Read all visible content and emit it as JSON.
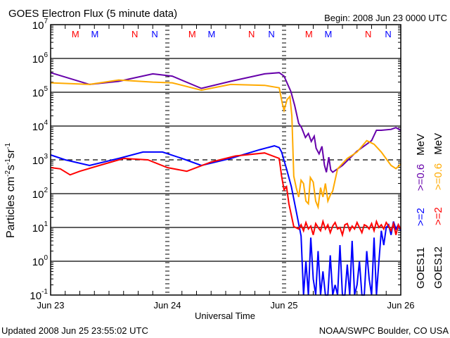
{
  "chart_data": {
    "type": "line",
    "title": "GOES Electron Flux (5 minute data)",
    "begin_label": "Begin: 2008 Jun 23 0000 UTC",
    "xlabel": "Universal Time",
    "ylabel": "Particles cm-2s-1sr-1",
    "ylabel_parts": [
      "Particles cm",
      "-2",
      "s",
      "-1",
      "sr",
      "-1"
    ],
    "yscale": "log",
    "ylim": [
      0.1,
      10000000
    ],
    "y_tick_exponents": [
      "7",
      "6",
      "5",
      "4",
      "3",
      "2",
      "1",
      "0",
      "-1"
    ],
    "y_tick_base": "10",
    "xlim_hours": [
      0,
      72
    ],
    "x_ticks": [
      {
        "hour": 0,
        "label": "Jun 23"
      },
      {
        "hour": 24,
        "label": "Jun 24"
      },
      {
        "hour": 48,
        "label": "Jun 25"
      },
      {
        "hour": 72,
        "label": "Jun 26"
      }
    ],
    "threshold": {
      "value": 1000,
      "style": "dashed"
    },
    "grid_values": [
      1000000,
      100000,
      10000,
      100,
      10,
      1
    ],
    "markers": [
      {
        "label": "M",
        "hour": 5.1,
        "color": "#ff0000"
      },
      {
        "label": "M",
        "hour": 9.1,
        "color": "#0000ff"
      },
      {
        "label": "N",
        "hour": 17.3,
        "color": "#ff0000"
      },
      {
        "label": "N",
        "hour": 21.4,
        "color": "#0000ff"
      },
      {
        "label": "M",
        "hour": 29.1,
        "color": "#ff0000"
      },
      {
        "label": "M",
        "hour": 33.1,
        "color": "#0000ff"
      },
      {
        "label": "N",
        "hour": 41.3,
        "color": "#ff0000"
      },
      {
        "label": "N",
        "hour": 45.4,
        "color": "#0000ff"
      },
      {
        "label": "M",
        "hour": 53.1,
        "color": "#ff0000"
      },
      {
        "label": "M",
        "hour": 57.1,
        "color": "#0000ff"
      },
      {
        "label": "N",
        "hour": 65.3,
        "color": "#ff0000"
      },
      {
        "label": "N",
        "hour": 69.4,
        "color": "#0000ff"
      }
    ],
    "legend": {
      "placement": "right, rotated",
      "columns": [
        {
          "satellite": "GOES11",
          "low": ">=2",
          "low_color": "#0000ff",
          "high": ">=0.6",
          "high_color": "#6600aa",
          "unit": "MeV"
        },
        {
          "satellite": "GOES12",
          "low": ">=2",
          "low_color": "#ff0000",
          "high": ">=0.6",
          "high_color": "#ffaa00",
          "unit": "MeV"
        }
      ]
    },
    "series": [
      {
        "name": "GOES11 >=0.6 MeV",
        "color": "#6600aa",
        "points": [
          [
            0,
            380000
          ],
          [
            8,
            170000
          ],
          [
            14,
            210000
          ],
          [
            21,
            350000
          ],
          [
            25,
            300000
          ],
          [
            31,
            130000
          ],
          [
            37,
            210000
          ],
          [
            44,
            350000
          ],
          [
            47,
            380000
          ],
          [
            48,
            300000
          ],
          [
            49.4,
            105000
          ],
          [
            50.2,
            40000
          ],
          [
            51,
            12000
          ],
          [
            51.6,
            9000
          ],
          [
            52.4,
            4600
          ],
          [
            53,
            6000
          ],
          [
            53.6,
            3500
          ],
          [
            54.2,
            5000
          ],
          [
            54.6,
            2200
          ],
          [
            55.2,
            1500
          ],
          [
            55.8,
            2500
          ],
          [
            56.3,
            700
          ],
          [
            56.7,
            430
          ],
          [
            57.2,
            1200
          ],
          [
            57.6,
            500
          ],
          [
            58,
            430
          ],
          [
            60,
            680
          ],
          [
            63,
            1800
          ],
          [
            66,
            3700
          ],
          [
            67,
            7500
          ],
          [
            68,
            7500
          ],
          [
            70,
            8000
          ],
          [
            71,
            9000
          ],
          [
            72,
            7500
          ]
        ]
      },
      {
        "name": "GOES12 >=0.6 MeV",
        "color": "#ffaa00",
        "points": [
          [
            0,
            190000
          ],
          [
            8,
            170000
          ],
          [
            14,
            230000
          ],
          [
            21,
            200000
          ],
          [
            25,
            190000
          ],
          [
            31,
            115000
          ],
          [
            37,
            170000
          ],
          [
            44,
            160000
          ],
          [
            47,
            135000
          ],
          [
            47.6,
            50000
          ],
          [
            48,
            29000
          ],
          [
            48.6,
            60000
          ],
          [
            49.2,
            75000
          ],
          [
            49.6,
            20000
          ],
          [
            50,
            330
          ],
          [
            50.5,
            150
          ],
          [
            51,
            80
          ],
          [
            51.5,
            250
          ],
          [
            52,
            200
          ],
          [
            52.5,
            60
          ],
          [
            53,
            50
          ],
          [
            53.4,
            300
          ],
          [
            54,
            220
          ],
          [
            54.5,
            60
          ],
          [
            55,
            40
          ],
          [
            55.5,
            150
          ],
          [
            56,
            80
          ],
          [
            56.5,
            200
          ],
          [
            57,
            60
          ],
          [
            57.5,
            90
          ],
          [
            58,
            120
          ],
          [
            59,
            540
          ],
          [
            61,
            1100
          ],
          [
            63,
            1700
          ],
          [
            65,
            3700
          ],
          [
            66.5,
            2900
          ],
          [
            68,
            1700
          ],
          [
            70,
            680
          ],
          [
            71,
            550
          ],
          [
            72,
            750
          ]
        ]
      },
      {
        "name": "GOES11 >=2 MeV",
        "color": "#0000ff",
        "points": [
          [
            0,
            1400
          ],
          [
            3,
            1000
          ],
          [
            8,
            680
          ],
          [
            14,
            1100
          ],
          [
            19,
            1700
          ],
          [
            23,
            1700
          ],
          [
            27,
            1100
          ],
          [
            31,
            680
          ],
          [
            37,
            1100
          ],
          [
            43,
            2000
          ],
          [
            46,
            2600
          ],
          [
            47,
            2300
          ],
          [
            47.5,
            1700
          ],
          [
            48.5,
            540
          ],
          [
            49.5,
            160
          ],
          [
            50.5,
            30
          ],
          [
            51.5,
            5.6
          ]
        ],
        "noisy_tail": {
          "start_hour": 52,
          "step_hours": 0.5,
          "values": [
            0.1,
            1,
            0.1,
            5,
            0.3,
            0.1,
            2,
            0.1,
            0.5,
            0.1,
            0.1,
            1.5,
            0.1,
            0.2,
            0.1,
            3,
            0.1,
            0.1,
            0.8,
            0.1,
            4,
            0.1,
            0.2,
            1,
            0.1,
            0.1,
            2,
            0.3,
            0.1,
            5,
            0.1,
            1,
            8,
            3,
            10,
            12,
            6,
            15,
            9,
            12,
            8
          ]
        }
      },
      {
        "name": "GOES12 >=2 MeV",
        "color": "#ff0000",
        "points": [
          [
            0,
            590
          ],
          [
            2,
            540
          ],
          [
            4,
            360
          ],
          [
            6,
            460
          ],
          [
            10,
            680
          ],
          [
            15,
            1100
          ],
          [
            20,
            1000
          ],
          [
            24,
            590
          ],
          [
            28,
            460
          ],
          [
            33,
            860
          ],
          [
            38,
            1300
          ],
          [
            44,
            1600
          ],
          [
            47,
            1100
          ],
          [
            47.5,
            330
          ],
          [
            48,
            130
          ],
          [
            48.5,
            160
          ],
          [
            49,
            50
          ],
          [
            50,
            10.6
          ],
          [
            51,
            9
          ]
        ],
        "noisy_tail": {
          "start_hour": 51.5,
          "step_hours": 0.5,
          "values": [
            12,
            8,
            14,
            9,
            11,
            6,
            13,
            10,
            8,
            15,
            9,
            12,
            7,
            11,
            14,
            9,
            10,
            6,
            12,
            13,
            8,
            11,
            9,
            14,
            10,
            7,
            12,
            11,
            9,
            13,
            8,
            15,
            10,
            12,
            9,
            14,
            11,
            8,
            13,
            6,
            12,
            9
          ]
        }
      }
    ]
  },
  "footer": {
    "updated": "Updated 2008 Jun 25 23:55:02 UTC",
    "source": "NOAA/SWPC Boulder, CO USA"
  }
}
